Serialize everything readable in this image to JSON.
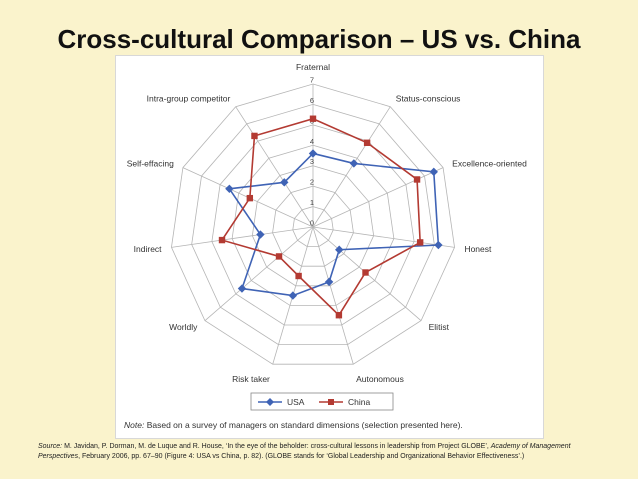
{
  "slide": {
    "title": "Cross-cultural Comparison – US vs. China"
  },
  "chart_data": {
    "type": "radar",
    "axes": [
      "Fraternal",
      "Status-conscious",
      "Excellence-oriented",
      "Honest",
      "Elitist",
      "Autonomous",
      "Risk taker",
      "Worldly",
      "Indirect",
      "Self-effacing",
      "Intra-group competitor"
    ],
    "rlim": [
      0,
      7
    ],
    "ticks": [
      "0",
      "1",
      "2",
      "3",
      "4",
      "5",
      "6",
      "7"
    ],
    "series": [
      {
        "name": "USA",
        "color": "#3f63b5",
        "marker": "diamond",
        "values": [
          3.6,
          3.7,
          6.5,
          6.2,
          1.7,
          2.8,
          3.5,
          4.6,
          2.6,
          4.5,
          2.6
        ]
      },
      {
        "name": "China",
        "color": "#b33a32",
        "marker": "square",
        "values": [
          5.3,
          4.9,
          5.6,
          5.3,
          3.4,
          4.5,
          2.5,
          2.2,
          4.5,
          3.4,
          5.3
        ]
      }
    ],
    "legend": "bottom",
    "grid": true
  },
  "note": {
    "label": "Note:",
    "text": " Based on a survey of managers on standard dimensions (selection presented here)."
  },
  "source": {
    "label": "Source:",
    "text1": " M. Javidan, P. Dorman, M. de Luque and R. House, ‘In the eye of the beholder: cross-cultural lessons in leadership from Project GLOBE’, ",
    "journal": "Academy of Management Perspectives",
    "text2": ", February 2006, pp. 67–90 (Figure 4: USA vs China, p. 82). (GLOBE stands for ‘Global Leadership and Organizational Behavior Effectiveness’.)"
  }
}
